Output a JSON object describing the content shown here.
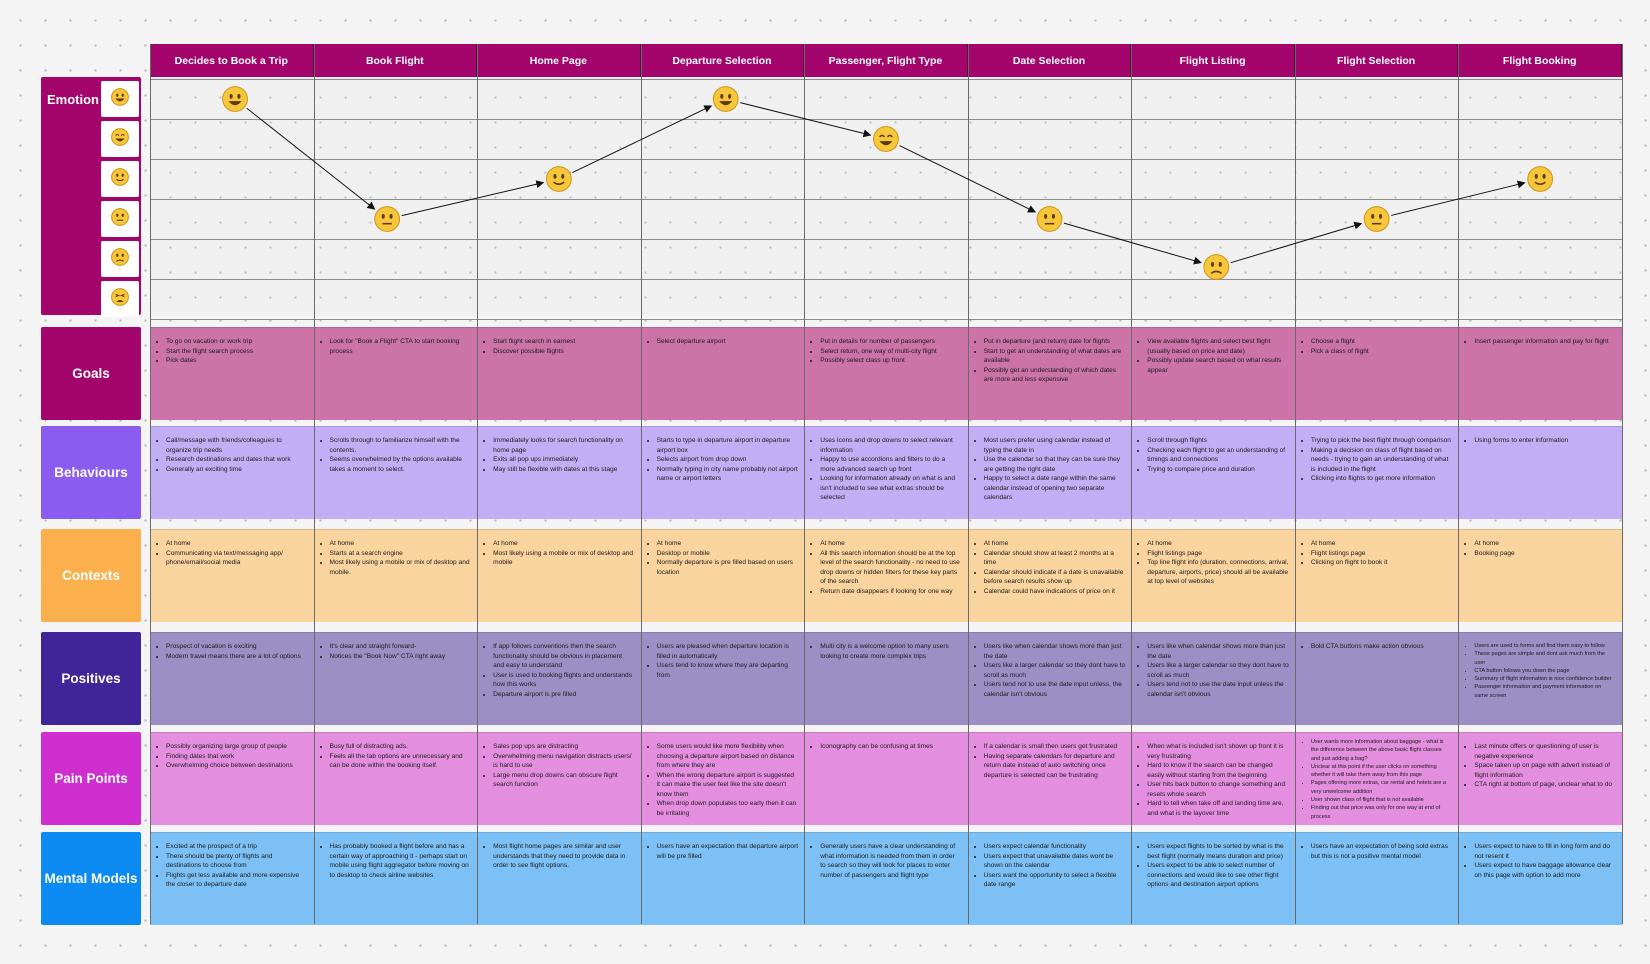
{
  "stages": [
    "Decides to Book a Trip",
    "Book Flight",
    "Home Page",
    "Departure Selection",
    "Passenger, Flight Type",
    "Date Selection",
    "Flight Listing",
    "Flight Selection",
    "Flight Booking"
  ],
  "emotion": {
    "label": "Emotion",
    "scale": [
      "very-happy",
      "grinning",
      "slightly-smiling",
      "neutral",
      "slightly-frowning",
      "tired"
    ],
    "levels": [
      0,
      3,
      2,
      0,
      1,
      3,
      4.2,
      3,
      2
    ]
  },
  "rows": [
    {
      "label": "Goals",
      "color": "#a3056d",
      "band": "#cc73aa",
      "light": false,
      "cells": [
        [
          "To go on vacation or work trip",
          "Start the flight search process",
          "Pick dates"
        ],
        [
          "Look for \"Book a Flight\" CTA to start booking process"
        ],
        [
          "Start flight search in earnest",
          "Discover possible flights"
        ],
        [
          "Select departure airport"
        ],
        [
          "Put in details for number of passengers",
          "Select return, one way of multi-city flight",
          "Possibly select class up front"
        ],
        [
          "Put in departure (and return) date for flights",
          "Start to get an understanding of what dates are available",
          "Possibly get an understanding of which dates are more and less expensive"
        ],
        [
          "View available flights and select best flight (usually based on price and date)",
          "Possibly update search based on what results appear"
        ],
        [
          "Choose a flight",
          "Pick a class of flight"
        ],
        [
          "Insert passenger information and pay for flight"
        ]
      ]
    },
    {
      "label": "Behaviours",
      "color": "#8b5cf0",
      "band": "#c2aef5",
      "light": false,
      "cells": [
        [
          "Call/message with friends/colleagues to organize trip needs",
          "Research destinations and dates that work",
          "Generally an exciting time"
        ],
        [
          "Scrolls through to familiarize himself with the contents.",
          "Seems overwhelmed by the options available takes a moment to select."
        ],
        [
          "Immediately looks for search functionality on home page",
          "Exits all pop ups immediately",
          "May still be flexible with dates at this stage"
        ],
        [
          "Starts to type in departure airport in departure airport box",
          "Selects airport from drop down",
          "Normally typing in city name probably not airport name or airport letters"
        ],
        [
          "Uses icons and drop downs to select relevant information",
          "Happy to use accordions and filters to do a more advanced search up front",
          "Looking for information already on what is and isn't included to see what extras should be selected"
        ],
        [
          "Most users prefer using calendar instead of typing the date in",
          "Use the calendar so that they can be sure they are getting the right date",
          "Happy to select a date range within the same calendar instead of opening two separate calendars"
        ],
        [
          "Scroll through flights",
          "Checking each flight to get an understanding of timings and connections",
          "Trying to compare price and duration"
        ],
        [
          "Trying to pick the best flight through comparison",
          "Making a decision on class of flight based on needs - trying to gain an understanding of what is included in the flight",
          "Clicking into flights to get more information"
        ],
        [
          "Using forms to enter information"
        ]
      ]
    },
    {
      "label": "Contexts",
      "color": "#fbb04d",
      "band": "#f9d49f",
      "light": false,
      "cells": [
        [
          "At home",
          "Communicating via text/messaging app/ phone/email/social media"
        ],
        [
          "At home",
          "Starts at a search engine",
          "Most likely using a mobile or mix of desktop and mobile."
        ],
        [
          "At home",
          "Most likely using a mobile or mix of desktop and mobile"
        ],
        [
          "At home",
          "Desktop or mobile",
          "Normally departure is pre filled based on users location"
        ],
        [
          "At home",
          "All this search information should be at the top level of the search functionality - no need to use drop downs or hidden filters for these key parts of the search",
          "Return date disappears if looking for one way"
        ],
        [
          "At home",
          "Calendar should show at least 2 months at a time",
          "Calendar should indicate if a date is unavailable before search results show up",
          "Calendar could have indications of price on it"
        ],
        [
          "At home",
          "Flight listings page",
          "Top line flight info (duration, connections, arrival, departure, airports, price) should all be available at top level of websites"
        ],
        [
          "At home",
          "Flight listings page",
          "Clicking on flight to book it"
        ],
        [
          "At home",
          "Booking page"
        ]
      ]
    },
    {
      "label": "Positives",
      "color": "#3f2598",
      "band": "#9c8fc6",
      "light": false,
      "cells": [
        [
          "Prospect of vacation is exciting",
          "Modern travel means there are a lot of options"
        ],
        [
          "It's clear and straight forward-",
          "Notices the \"Book Now\" CTA right away"
        ],
        [
          "If app follows conventions then the search functionality should be obvious in placement and easy to understand",
          "User is used to booking flights and understands how this works",
          "Departure airport is pre filled"
        ],
        [
          "Users are pleased when departure location is filled in automatically",
          "Users tend to know where they are departing from"
        ],
        [
          "Multi city is a welcome option to many users looking to create more complex trips"
        ],
        [
          "Users like when calendar shows more than just the date",
          "Users like a larger calendar so they dont have to scroll as much",
          "Users tend not to use the date input unless, the calendar isn't obvious"
        ],
        [
          "Users like when calendar shows more than just the date",
          "Users like a larger calendar so they dont have to scroll as much",
          "Users tend not to use the date input unless the calendar isn't obvious"
        ],
        [
          "Bold CTA buttons make action obvious"
        ],
        [
          "Users are used to forms and find them easy to follow",
          "These pages are simple and dont ask much from the user",
          "CTA button follows you down the page",
          "Summary of flight information is nice confidence builder",
          "Passenger information and payment information on same screen"
        ]
      ]
    },
    {
      "label": "Pain Points",
      "color": "#cf2fcf",
      "band": "#e48ee0",
      "light": false,
      "cells": [
        [
          "Possibly organizing large group of people",
          "Finding dates that work",
          "Overwhelming choice between destinations"
        ],
        [
          "Busy full of distracting ads.",
          "Feels all the tab options are unnecessary and can be done within the booking itself."
        ],
        [
          "Sales pop ups are distracting",
          "Overwhelming menu navigation distracts users/ is hard to use",
          "Large menu drop downs can obscure flight search function"
        ],
        [
          "Some users would like more flexibility when choosing a departure airport based on distance from where they are",
          "When the wrong departure airport is suggested it can make the user feel like the site doesn't know them",
          "When drop down populates too early then it can be irritating"
        ],
        [
          "Iconography can be confusing at times"
        ],
        [
          "If a calendar is small then users get frustrated",
          "Having separate calendars for departure and return date instead of auto switching once departure is selected can be frustrating"
        ],
        [
          "When what is included isn't shown up front it is very frustrating",
          "Hard to know if the search can be changed easily without starting from the beginning",
          "User hits back button to change something and resets whole search",
          "Hard to tell when take off and landing time are, and what is the layover time"
        ],
        [
          "User wants more information about baggage - what is the difference between the above basic flight classes and just adding a bag?",
          "Unclear at this point if the user clicks on something whether it will take them away from this page",
          "Pages offering more extras, car rental and hotels are a very unwelcome addition",
          "User shown class of flight that is not available",
          "Finding out that price was only for one way at end of process"
        ],
        [
          "Last minute offers or questioning of user is negative experience",
          "Space taken up on page with advert instead of flight information",
          "CTA right at bottom of page, unclear what to do"
        ]
      ]
    },
    {
      "label": "Mental Models",
      "color": "#0b8af2",
      "band": "#7cc0f6",
      "light": false,
      "cells": [
        [
          "Excited at the prospect of a trip",
          "There should be plenty of flights and destinations to choose from",
          "Flights get less available and more expensive the closer to departure date"
        ],
        [
          "Has probably booked a flight before and has a certain way of approaching it - perhaps start on mobile using flight aggregator before moving on to desktop to check airline websites"
        ],
        [
          "Most flight home pages are similar and user understands that they need to provide data in order to see flight options."
        ],
        [
          "Users have an expectation that departure airport will be pre filled"
        ],
        [
          "Generally users have a clear understanding of what information is needed from them in order to search so they will look for places to enter number of passengers and flight type"
        ],
        [
          "Users expect calendar functionality",
          "Users expect that unavailable dates wont be shown on the calendar",
          "Users want the opportunity to select a flexible date range"
        ],
        [
          "Users expect flights to be sorted by what is the best flight (normally means duration and price)",
          "Users expect to be able to select number of connections and would like to see other flight options and destination airport options"
        ],
        [
          "Users have an expectation of being sold extras but this is not a positive mental model"
        ],
        [
          "Users expect to have to fill in long form and do not resent it",
          "Users expect to have baggage allowance clear on this page with option to add more"
        ]
      ]
    }
  ]
}
